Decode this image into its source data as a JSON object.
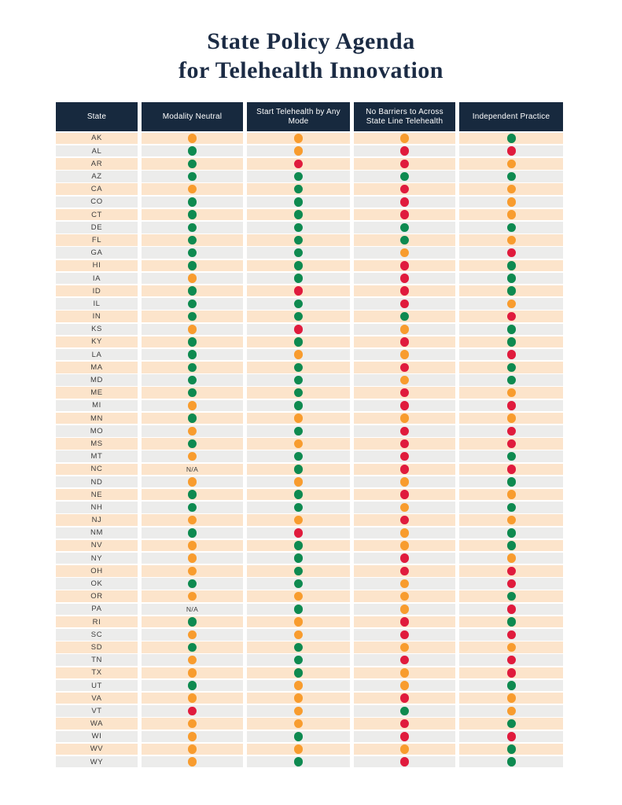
{
  "title": {
    "line1": "State Policy Agenda",
    "line2": "for Telehealth Innovation"
  },
  "colors": {
    "title_color": "#1b2b44",
    "header_bg": "#17293e",
    "row_odd": "#fce4cb",
    "row_even": "#ececeb",
    "state_text": "#3b3b3b",
    "dot_green": "#0e8a50",
    "dot_orange": "#f89c2e",
    "dot_red": "#e01b3d"
  },
  "table": {
    "na_label": "N/A",
    "columns": [
      "State",
      "Modality Neutral",
      "Start Telehealth by Any Mode",
      "No Barriers to Across State Line Telehealth",
      "Independent Practice"
    ],
    "rows": [
      {
        "state": "AK",
        "values": [
          "orange",
          "orange",
          "orange",
          "green"
        ]
      },
      {
        "state": "AL",
        "values": [
          "green",
          "orange",
          "red",
          "red"
        ]
      },
      {
        "state": "AR",
        "values": [
          "green",
          "red",
          "red",
          "orange"
        ]
      },
      {
        "state": "AZ",
        "values": [
          "green",
          "green",
          "green",
          "green"
        ]
      },
      {
        "state": "CA",
        "values": [
          "orange",
          "green",
          "red",
          "orange"
        ]
      },
      {
        "state": "CO",
        "values": [
          "green",
          "green",
          "red",
          "orange"
        ]
      },
      {
        "state": "CT",
        "values": [
          "green",
          "green",
          "red",
          "orange"
        ]
      },
      {
        "state": "DE",
        "values": [
          "green",
          "green",
          "green",
          "green"
        ]
      },
      {
        "state": "FL",
        "values": [
          "green",
          "green",
          "green",
          "orange"
        ]
      },
      {
        "state": "GA",
        "values": [
          "green",
          "green",
          "orange",
          "red"
        ]
      },
      {
        "state": "HI",
        "values": [
          "green",
          "green",
          "red",
          "green"
        ]
      },
      {
        "state": "IA",
        "values": [
          "orange",
          "green",
          "red",
          "green"
        ]
      },
      {
        "state": "ID",
        "values": [
          "green",
          "red",
          "red",
          "green"
        ]
      },
      {
        "state": "IL",
        "values": [
          "green",
          "green",
          "red",
          "orange"
        ]
      },
      {
        "state": "IN",
        "values": [
          "green",
          "green",
          "green",
          "red"
        ]
      },
      {
        "state": "KS",
        "values": [
          "orange",
          "red",
          "orange",
          "green"
        ]
      },
      {
        "state": "KY",
        "values": [
          "green",
          "green",
          "red",
          "green"
        ]
      },
      {
        "state": "LA",
        "values": [
          "green",
          "orange",
          "orange",
          "red"
        ]
      },
      {
        "state": "MA",
        "values": [
          "green",
          "green",
          "red",
          "green"
        ]
      },
      {
        "state": "MD",
        "values": [
          "green",
          "green",
          "orange",
          "green"
        ]
      },
      {
        "state": "ME",
        "values": [
          "green",
          "green",
          "red",
          "orange"
        ]
      },
      {
        "state": "MI",
        "values": [
          "orange",
          "green",
          "red",
          "red"
        ]
      },
      {
        "state": "MN",
        "values": [
          "green",
          "orange",
          "orange",
          "orange"
        ]
      },
      {
        "state": "MO",
        "values": [
          "orange",
          "green",
          "red",
          "red"
        ]
      },
      {
        "state": "MS",
        "values": [
          "green",
          "orange",
          "red",
          "red"
        ]
      },
      {
        "state": "MT",
        "values": [
          "orange",
          "green",
          "red",
          "green"
        ]
      },
      {
        "state": "NC",
        "values": [
          "na",
          "green",
          "red",
          "red"
        ]
      },
      {
        "state": "ND",
        "values": [
          "orange",
          "orange",
          "orange",
          "green"
        ]
      },
      {
        "state": "NE",
        "values": [
          "green",
          "green",
          "red",
          "orange"
        ]
      },
      {
        "state": "NH",
        "values": [
          "green",
          "green",
          "orange",
          "green"
        ]
      },
      {
        "state": "NJ",
        "values": [
          "orange",
          "orange",
          "red",
          "orange"
        ]
      },
      {
        "state": "NM",
        "values": [
          "green",
          "red",
          "orange",
          "green"
        ]
      },
      {
        "state": "NV",
        "values": [
          "orange",
          "green",
          "orange",
          "green"
        ]
      },
      {
        "state": "NY",
        "values": [
          "orange",
          "green",
          "red",
          "orange"
        ]
      },
      {
        "state": "OH",
        "values": [
          "orange",
          "green",
          "red",
          "red"
        ]
      },
      {
        "state": "OK",
        "values": [
          "green",
          "green",
          "orange",
          "red"
        ]
      },
      {
        "state": "OR",
        "values": [
          "orange",
          "orange",
          "orange",
          "green"
        ]
      },
      {
        "state": "PA",
        "values": [
          "na",
          "green",
          "orange",
          "red"
        ]
      },
      {
        "state": "RI",
        "values": [
          "green",
          "orange",
          "red",
          "green"
        ]
      },
      {
        "state": "SC",
        "values": [
          "orange",
          "orange",
          "red",
          "red"
        ]
      },
      {
        "state": "SD",
        "values": [
          "green",
          "green",
          "orange",
          "orange"
        ]
      },
      {
        "state": "TN",
        "values": [
          "orange",
          "green",
          "red",
          "red"
        ]
      },
      {
        "state": "TX",
        "values": [
          "orange",
          "green",
          "orange",
          "red"
        ]
      },
      {
        "state": "UT",
        "values": [
          "green",
          "orange",
          "orange",
          "green"
        ]
      },
      {
        "state": "VA",
        "values": [
          "orange",
          "orange",
          "red",
          "orange"
        ]
      },
      {
        "state": "VT",
        "values": [
          "red",
          "orange",
          "green",
          "orange"
        ]
      },
      {
        "state": "WA",
        "values": [
          "orange",
          "orange",
          "red",
          "green"
        ]
      },
      {
        "state": "WI",
        "values": [
          "orange",
          "green",
          "red",
          "red"
        ]
      },
      {
        "state": "WV",
        "values": [
          "orange",
          "orange",
          "orange",
          "green"
        ]
      },
      {
        "state": "WY",
        "values": [
          "orange",
          "green",
          "red",
          "green"
        ]
      }
    ]
  }
}
